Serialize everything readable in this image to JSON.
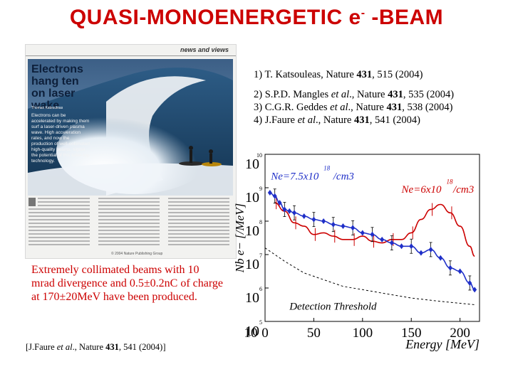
{
  "title": {
    "main": "QUASI-MONOENERGETIC e",
    "sup": "-",
    "tail": " -BEAM"
  },
  "magazine": {
    "section": "news and views",
    "headline": "Electrons hang ten on laser wake",
    "byline": "Thomas Katsouleas",
    "lead": "Electrons can be accelerated by making them surf a laser-driven plasma wave. High acceleration rates, and now the production of well-collimated high-quality beams, signal the potential of this table-top technology.",
    "copyright": "© 2004 Nature Publishing Group"
  },
  "references": [
    {
      "label": "1) T. Katsouleas, Nature ",
      "volume": "431",
      "rest": ", 515 (2004)"
    },
    {
      "label": "2) S.P.D. Mangles ",
      "etal": "et al",
      "mid": "., Nature ",
      "volume": "431",
      "rest": ", 535 (2004)"
    },
    {
      "label": "3) C.G.R. Geddes ",
      "etal": "et al",
      "mid": "., Nature ",
      "volume": "431",
      "rest": ", 538 (2004)"
    },
    {
      "label": "4) J.Faure ",
      "etal": "et al",
      "mid": "., Nature ",
      "volume": "431",
      "rest": ", 541 (2004)"
    }
  ],
  "caption": "Extremely collimated beams with 10 mrad divergence and 0.5±0.2nC of charge at 170±20MeV have been produced.",
  "citation": {
    "pre": "[J.Faure ",
    "etal": "et al",
    "mid": "., Nature ",
    "volume": "431",
    "rest": ", 541 (2004)]"
  },
  "plot": {
    "ylabel": "Nb e− [/MeV]",
    "xlabel": "Energy [MeV]",
    "detection_label": "Detection Threshold",
    "blue_label": "Ne=7.5x10",
    "blue_exp": "18",
    "blue_unit": "/cm3",
    "red_label": "Ne=6x10",
    "red_exp": "18",
    "red_unit": "/cm3",
    "y_ticks": [
      {
        "base": "10",
        "exp": "10",
        "value": 10
      },
      {
        "base": "10",
        "exp": "9",
        "value": 9
      },
      {
        "base": "10",
        "exp": "8",
        "value": 8
      },
      {
        "base": "10",
        "exp": "7",
        "value": 7
      },
      {
        "base": "10",
        "exp": "6",
        "value": 6
      },
      {
        "base": "10",
        "exp": "5",
        "value": 5
      }
    ],
    "x_ticks": [
      "0",
      "50",
      "100",
      "150",
      "200"
    ],
    "colors": {
      "blue": "#1f2fc8",
      "red": "#cc0000",
      "axis": "#000000",
      "title": "#cc0000"
    }
  },
  "chart_data": {
    "type": "scatter",
    "xlabel": "Energy [MeV]",
    "ylabel": "Nb e− [/MeV]",
    "xlim": [
      0,
      220
    ],
    "ylim": [
      5,
      10
    ],
    "log_y": true,
    "series": [
      {
        "name": "Ne=7.5x10^18/cm3",
        "x": [
          5,
          10,
          15,
          20,
          25,
          30,
          40,
          50,
          60,
          70,
          80,
          90,
          100,
          110,
          120,
          130,
          140,
          150,
          160,
          170,
          180,
          190,
          200,
          210,
          215
        ],
        "y": [
          8.85,
          8.75,
          8.55,
          8.35,
          8.3,
          8.25,
          8.15,
          8.05,
          8.0,
          7.9,
          7.85,
          7.8,
          7.65,
          7.6,
          7.45,
          7.35,
          7.25,
          7.25,
          7.05,
          7.15,
          6.9,
          6.6,
          6.5,
          6.15,
          5.95
        ]
      },
      {
        "name": "Ne=6x10^18/cm3",
        "x": [
          10,
          20,
          30,
          40,
          50,
          60,
          70,
          80,
          90,
          100,
          110,
          120,
          130,
          140,
          150,
          160,
          170,
          180,
          190,
          200,
          210,
          215
        ],
        "y": [
          8.55,
          8.3,
          7.95,
          7.85,
          7.6,
          7.65,
          7.55,
          7.45,
          7.45,
          7.55,
          7.4,
          7.35,
          7.45,
          7.45,
          7.65,
          8.05,
          8.35,
          8.5,
          8.25,
          7.85,
          7.25,
          6.95
        ]
      }
    ],
    "reference_lines": [
      {
        "name": "Detection Threshold",
        "x": [
          0,
          20,
          40,
          60,
          80,
          100,
          120,
          150,
          180,
          215
        ],
        "y": [
          7.2,
          6.8,
          6.45,
          6.25,
          6.05,
          5.95,
          5.85,
          5.7,
          5.6,
          5.5
        ]
      }
    ]
  }
}
